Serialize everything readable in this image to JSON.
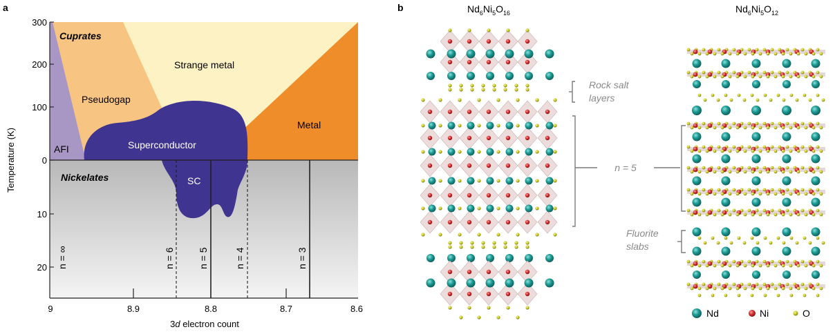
{
  "panel_a": {
    "label": "a",
    "ylabel": "Temperature (K)",
    "xlabel_pre": "3",
    "xlabel_italic": "d",
    "xlabel_post": " electron count",
    "x_ticks": [
      "9",
      "8.9",
      "8.8",
      "8.7",
      "8.6"
    ],
    "y_ticks_top": [
      "300",
      "200",
      "100",
      "0"
    ],
    "y_ticks_bottom": [
      "10",
      "20"
    ],
    "regions": {
      "cuprates": "Cuprates",
      "afi": "AFI",
      "pseudogap": "Pseudogap",
      "strange_metal": "Strange metal",
      "metal": "Metal",
      "superconductor": "Superconductor",
      "nickelates": "Nickelates",
      "sc": "SC"
    },
    "n_labels": [
      "n = ∞",
      "n = 6",
      "n = 5",
      "n = 4",
      "n = 3"
    ]
  },
  "panel_b": {
    "label": "b",
    "left_title_base": "Nd",
    "left_title_sub1": "6",
    "left_title_mid": "Ni",
    "left_title_sub2": "5",
    "left_title_o": "O",
    "left_title_sub3": "16",
    "right_title_base": "Nd",
    "right_title_sub1": "6",
    "right_title_mid": "Ni",
    "right_title_sub2": "5",
    "right_title_o": "O",
    "right_title_sub3": "12",
    "rock_salt_line1": "Rock salt",
    "rock_salt_line2": "layers",
    "n_label": "n = 5",
    "fluorite_line1": "Fluorite",
    "fluorite_line2": "slabs",
    "legend": [
      {
        "label": "Nd",
        "color": "#1e9c96"
      },
      {
        "label": "Ni",
        "color": "#d32c2c"
      },
      {
        "label": "O",
        "color": "#c9c726"
      }
    ]
  },
  "colors": {
    "afi": "#a897c4",
    "pseudogap": "#f8c482",
    "strange_metal": "#fdf2c4",
    "metal": "#ef8d2b",
    "superconductor": "#3f3591",
    "nickel_bg_top": "#b8b8b8",
    "nickel_bg_bottom": "#f4f4f4",
    "octahedron": "#ead6d6"
  }
}
